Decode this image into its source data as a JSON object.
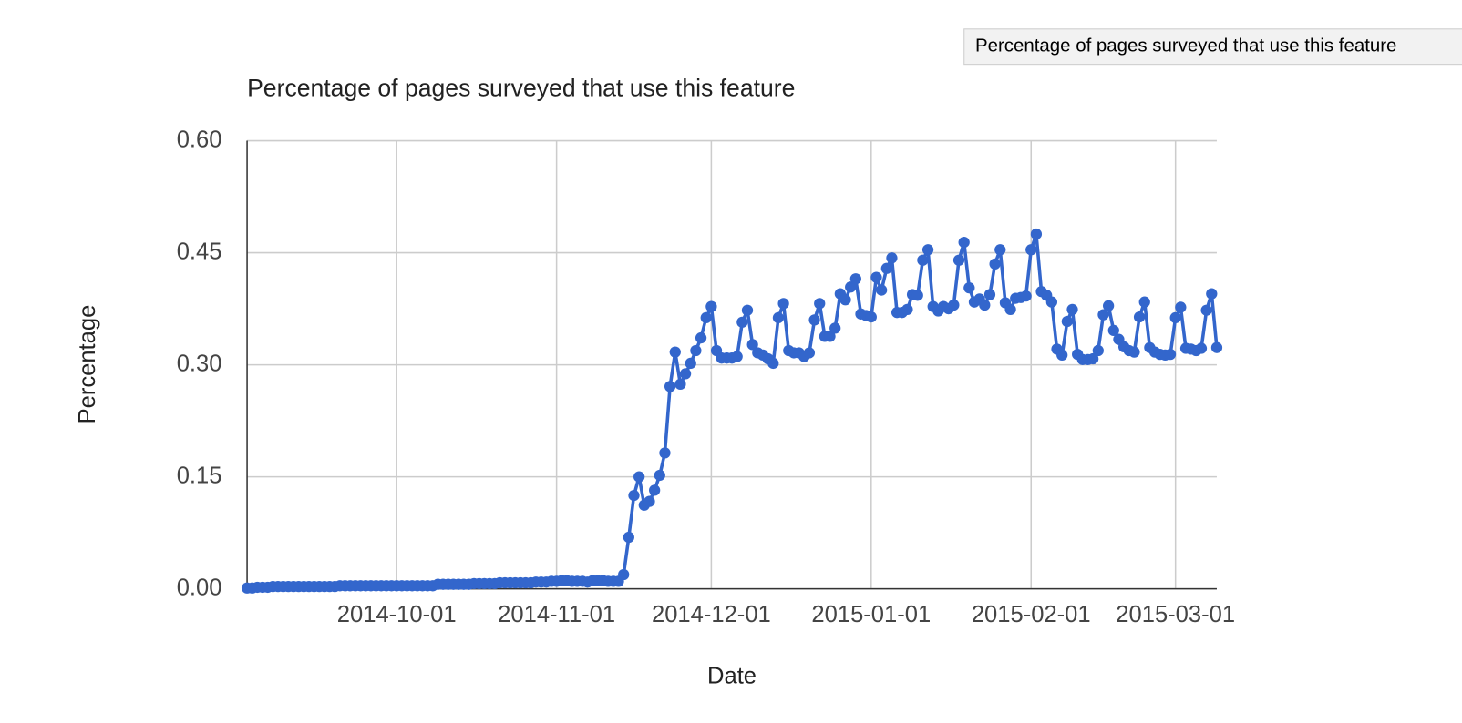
{
  "chart_data": {
    "type": "line",
    "title": "Percentage of pages surveyed that use this feature",
    "tooltip": "Percentage of pages surveyed that use this feature",
    "xlabel": "Date",
    "ylabel": "Percentage",
    "x": [
      "2014-09-02",
      "2014-09-03",
      "2014-09-04",
      "2014-09-05",
      "2014-09-06",
      "2014-09-07",
      "2014-09-08",
      "2014-09-09",
      "2014-09-10",
      "2014-09-11",
      "2014-09-12",
      "2014-09-13",
      "2014-09-14",
      "2014-09-15",
      "2014-09-16",
      "2014-09-17",
      "2014-09-18",
      "2014-09-19",
      "2014-09-20",
      "2014-09-21",
      "2014-09-22",
      "2014-09-23",
      "2014-09-24",
      "2014-09-25",
      "2014-09-26",
      "2014-09-27",
      "2014-09-28",
      "2014-09-29",
      "2014-09-30",
      "2014-10-01",
      "2014-10-02",
      "2014-10-03",
      "2014-10-04",
      "2014-10-05",
      "2014-10-06",
      "2014-10-07",
      "2014-10-08",
      "2014-10-09",
      "2014-10-10",
      "2014-10-11",
      "2014-10-12",
      "2014-10-13",
      "2014-10-14",
      "2014-10-15",
      "2014-10-16",
      "2014-10-17",
      "2014-10-18",
      "2014-10-19",
      "2014-10-20",
      "2014-10-21",
      "2014-10-22",
      "2014-10-23",
      "2014-10-24",
      "2014-10-25",
      "2014-10-26",
      "2014-10-27",
      "2014-10-28",
      "2014-10-29",
      "2014-10-30",
      "2014-10-31",
      "2014-11-01",
      "2014-11-02",
      "2014-11-03",
      "2014-11-04",
      "2014-11-05",
      "2014-11-06",
      "2014-11-07",
      "2014-11-08",
      "2014-11-09",
      "2014-11-10",
      "2014-11-11",
      "2014-11-12",
      "2014-11-13",
      "2014-11-14",
      "2014-11-15",
      "2014-11-16",
      "2014-11-17",
      "2014-11-18",
      "2014-11-19",
      "2014-11-20",
      "2014-11-21",
      "2014-11-22",
      "2014-11-23",
      "2014-11-24",
      "2014-11-25",
      "2014-11-26",
      "2014-11-27",
      "2014-11-28",
      "2014-11-29",
      "2014-11-30",
      "2014-12-01",
      "2014-12-02",
      "2014-12-03",
      "2014-12-04",
      "2014-12-05",
      "2014-12-06",
      "2014-12-07",
      "2014-12-08",
      "2014-12-09",
      "2014-12-10",
      "2014-12-11",
      "2014-12-12",
      "2014-12-13",
      "2014-12-14",
      "2014-12-15",
      "2014-12-16",
      "2014-12-17",
      "2014-12-18",
      "2014-12-19",
      "2014-12-20",
      "2014-12-21",
      "2014-12-22",
      "2014-12-23",
      "2014-12-24",
      "2014-12-25",
      "2014-12-26",
      "2014-12-27",
      "2014-12-28",
      "2014-12-29",
      "2014-12-30",
      "2014-12-31",
      "2015-01-01",
      "2015-01-02",
      "2015-01-03",
      "2015-01-04",
      "2015-01-05",
      "2015-01-06",
      "2015-01-07",
      "2015-01-08",
      "2015-01-09",
      "2015-01-10",
      "2015-01-11",
      "2015-01-12",
      "2015-01-13",
      "2015-01-14",
      "2015-01-15",
      "2015-01-16",
      "2015-01-17",
      "2015-01-18",
      "2015-01-19",
      "2015-01-20",
      "2015-01-21",
      "2015-01-22",
      "2015-01-23",
      "2015-01-24",
      "2015-01-25",
      "2015-01-26",
      "2015-01-27",
      "2015-01-28",
      "2015-01-29",
      "2015-01-30",
      "2015-01-31",
      "2015-02-01",
      "2015-02-02",
      "2015-02-03",
      "2015-02-04",
      "2015-02-05",
      "2015-02-06",
      "2015-02-07",
      "2015-02-08",
      "2015-02-09",
      "2015-02-10",
      "2015-02-11",
      "2015-02-12",
      "2015-02-13",
      "2015-02-14",
      "2015-02-15",
      "2015-02-16",
      "2015-02-17",
      "2015-02-18",
      "2015-02-19",
      "2015-02-20",
      "2015-02-21",
      "2015-02-22",
      "2015-02-23",
      "2015-02-24",
      "2015-02-25",
      "2015-02-26",
      "2015-02-27",
      "2015-02-28",
      "2015-03-01",
      "2015-03-02",
      "2015-03-03",
      "2015-03-04",
      "2015-03-05",
      "2015-03-06",
      "2015-03-07",
      "2015-03-08",
      "2015-03-09"
    ],
    "series": [
      {
        "name": "Percentage",
        "color": "#3366cc",
        "values": [
          0.001,
          0.001,
          0.002,
          0.002,
          0.002,
          0.003,
          0.003,
          0.003,
          0.003,
          0.003,
          0.003,
          0.003,
          0.003,
          0.003,
          0.003,
          0.003,
          0.003,
          0.003,
          0.004,
          0.004,
          0.004,
          0.004,
          0.004,
          0.004,
          0.004,
          0.004,
          0.004,
          0.004,
          0.004,
          0.004,
          0.004,
          0.004,
          0.004,
          0.004,
          0.004,
          0.004,
          0.004,
          0.006,
          0.006,
          0.006,
          0.006,
          0.006,
          0.006,
          0.006,
          0.007,
          0.007,
          0.007,
          0.007,
          0.007,
          0.008,
          0.008,
          0.008,
          0.008,
          0.008,
          0.008,
          0.008,
          0.009,
          0.009,
          0.009,
          0.01,
          0.01,
          0.011,
          0.011,
          0.01,
          0.01,
          0.01,
          0.009,
          0.011,
          0.011,
          0.011,
          0.01,
          0.01,
          0.01,
          0.019,
          0.069,
          0.125,
          0.15,
          0.112,
          0.117,
          0.132,
          0.152,
          0.182,
          0.271,
          0.317,
          0.274,
          0.288,
          0.302,
          0.319,
          0.336,
          0.363,
          0.378,
          0.319,
          0.309,
          0.309,
          0.309,
          0.311,
          0.357,
          0.373,
          0.327,
          0.316,
          0.313,
          0.308,
          0.302,
          0.363,
          0.382,
          0.319,
          0.316,
          0.316,
          0.311,
          0.316,
          0.36,
          0.382,
          0.338,
          0.338,
          0.349,
          0.395,
          0.387,
          0.404,
          0.415,
          0.368,
          0.366,
          0.364,
          0.417,
          0.4,
          0.429,
          0.443,
          0.37,
          0.37,
          0.374,
          0.394,
          0.393,
          0.44,
          0.454,
          0.378,
          0.372,
          0.378,
          0.375,
          0.38,
          0.44,
          0.464,
          0.403,
          0.384,
          0.388,
          0.38,
          0.394,
          0.435,
          0.454,
          0.383,
          0.374,
          0.389,
          0.39,
          0.392,
          0.454,
          0.475,
          0.398,
          0.393,
          0.384,
          0.321,
          0.313,
          0.358,
          0.374,
          0.314,
          0.307,
          0.307,
          0.308,
          0.319,
          0.367,
          0.379,
          0.346,
          0.334,
          0.324,
          0.319,
          0.317,
          0.364,
          0.384,
          0.323,
          0.317,
          0.314,
          0.313,
          0.314,
          0.363,
          0.377,
          0.322,
          0.321,
          0.319,
          0.322,
          0.373,
          0.395,
          0.323
        ]
      }
    ],
    "xlim": [
      "2014-09-02",
      "2015-03-09"
    ],
    "xticks": [
      "2014-10-01",
      "2014-11-01",
      "2014-12-01",
      "2015-01-01",
      "2015-02-01",
      "2015-03-01"
    ],
    "ylim": [
      0,
      0.6
    ],
    "yticks": [
      {
        "value": 0,
        "label": "0.00"
      },
      {
        "value": 0.15,
        "label": "0.15"
      },
      {
        "value": 0.3,
        "label": "0.30"
      },
      {
        "value": 0.45,
        "label": "0.45"
      },
      {
        "value": 0.6,
        "label": "0.60"
      }
    ],
    "grid": true
  }
}
